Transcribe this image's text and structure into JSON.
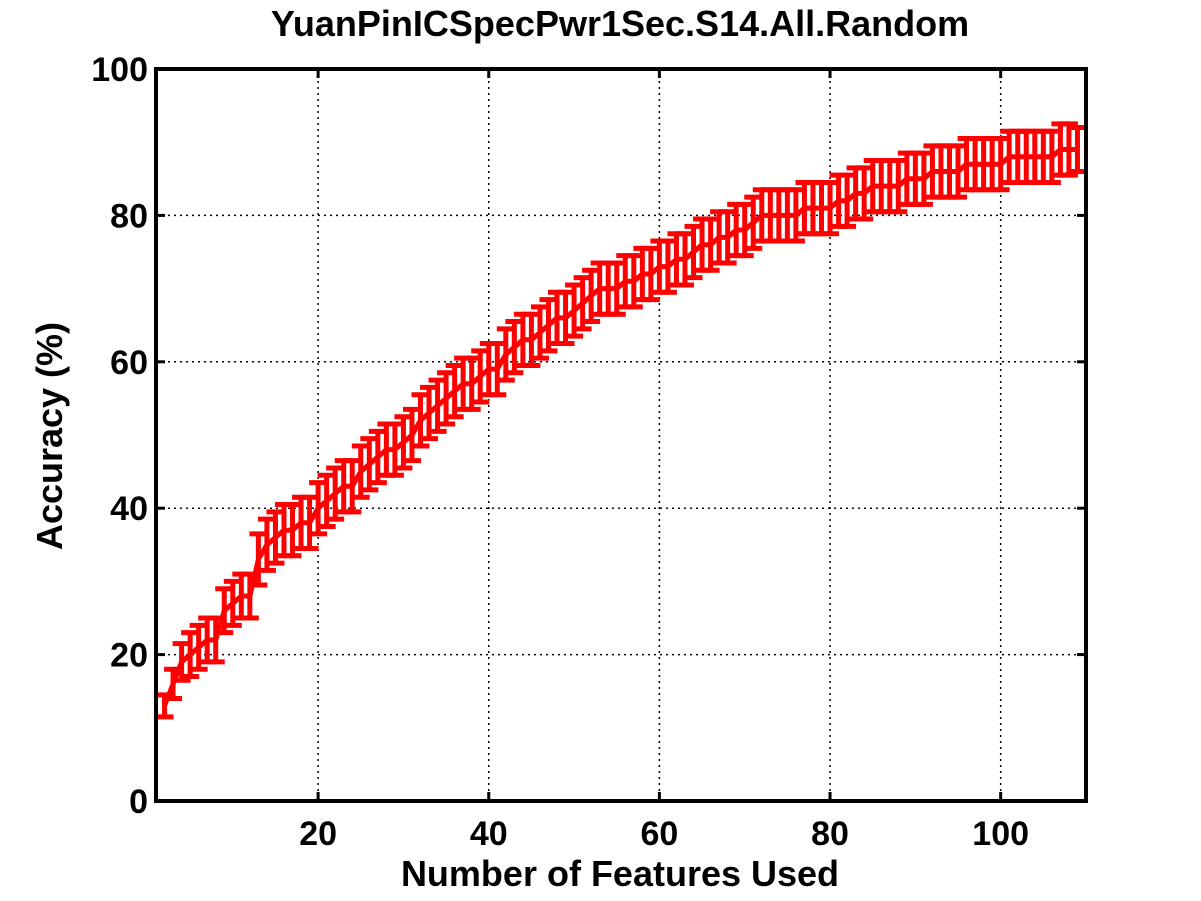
{
  "chart_data": {
    "type": "line",
    "title": "YuanPinICSpecPwr1Sec.S14.All.Random",
    "xlabel": "Number of Features Used",
    "ylabel": "Accuracy (%)",
    "xlim": [
      1,
      110
    ],
    "ylim": [
      0,
      100
    ],
    "xticks": [
      20,
      40,
      60,
      80,
      100
    ],
    "yticks": [
      0,
      20,
      40,
      60,
      80,
      100
    ],
    "grid": true,
    "color": "#ff0000",
    "error_bars": true,
    "series": [
      {
        "x": [
          2,
          3,
          4,
          5,
          6,
          7,
          8,
          9,
          10,
          11,
          12,
          13,
          14,
          15,
          16,
          17,
          18,
          19,
          20,
          21,
          22,
          23,
          24,
          25,
          26,
          27,
          28,
          29,
          30,
          31,
          32,
          33,
          34,
          35,
          36,
          37,
          38,
          39,
          40,
          41,
          42,
          43,
          44,
          45,
          46,
          47,
          48,
          49,
          50,
          51,
          52,
          53,
          54,
          55,
          56,
          57,
          58,
          59,
          60,
          61,
          62,
          63,
          64,
          65,
          66,
          67,
          68,
          69,
          70,
          71,
          72,
          73,
          74,
          75,
          76,
          77,
          78,
          79,
          80,
          81,
          82,
          83,
          84,
          85,
          86,
          87,
          88,
          89,
          90,
          91,
          92,
          93,
          94,
          95,
          96,
          97,
          98,
          99,
          100,
          101,
          102,
          103,
          104,
          105,
          106,
          107,
          108,
          109
        ],
        "y": [
          13,
          16,
          19,
          20,
          21,
          22,
          22,
          26,
          27,
          28,
          28,
          33,
          35,
          36,
          37,
          37,
          38,
          38,
          40,
          41,
          42,
          43,
          43,
          45,
          46,
          47,
          48,
          48,
          49,
          50,
          52,
          53,
          54,
          55,
          56,
          57,
          57,
          58,
          59,
          59,
          61,
          62,
          63,
          63,
          64,
          65,
          66,
          66,
          67,
          68,
          69,
          70,
          70,
          70,
          71,
          71,
          72,
          72,
          73,
          73,
          74,
          74,
          75,
          76,
          76,
          77,
          77,
          78,
          78,
          79,
          80,
          80,
          80,
          80,
          80,
          81,
          81,
          81,
          81,
          82,
          82,
          83,
          83,
          84,
          84,
          84,
          84,
          85,
          85,
          85,
          86,
          86,
          86,
          86,
          87,
          87,
          87,
          87,
          87,
          88,
          88,
          88,
          88,
          88,
          88,
          89,
          89,
          89
        ],
        "err": [
          1.5,
          2,
          2.5,
          3,
          3,
          3,
          3,
          3,
          3,
          3,
          3,
          3.5,
          3.5,
          3.5,
          3.5,
          3.5,
          3.5,
          3.5,
          3.5,
          3.5,
          3.5,
          3.5,
          3.5,
          3.5,
          3.5,
          3.5,
          3.5,
          3.5,
          3.5,
          3.5,
          3.5,
          3.5,
          3.5,
          3.5,
          3.5,
          3.5,
          3.5,
          3.5,
          3.5,
          3.5,
          3.5,
          3.5,
          3.5,
          3.5,
          3.5,
          3.5,
          3.5,
          3.5,
          3.5,
          3.5,
          3.5,
          3.5,
          3.5,
          3.5,
          3.5,
          3.5,
          3.5,
          3.5,
          3.5,
          3.5,
          3.5,
          3.5,
          3.5,
          3.5,
          3.5,
          3.5,
          3.5,
          3.5,
          3.5,
          3.5,
          3.5,
          3.5,
          3.5,
          3.5,
          3.5,
          3.5,
          3.5,
          3.5,
          3.5,
          3.5,
          3.5,
          3.5,
          3.5,
          3.5,
          3.5,
          3.5,
          3.5,
          3.5,
          3.5,
          3.5,
          3.5,
          3.5,
          3.5,
          3.5,
          3.5,
          3.5,
          3.5,
          3.5,
          3.5,
          3.5,
          3.5,
          3.5,
          3.5,
          3.5,
          3.5,
          3.5,
          3.5,
          3
        ]
      }
    ]
  }
}
